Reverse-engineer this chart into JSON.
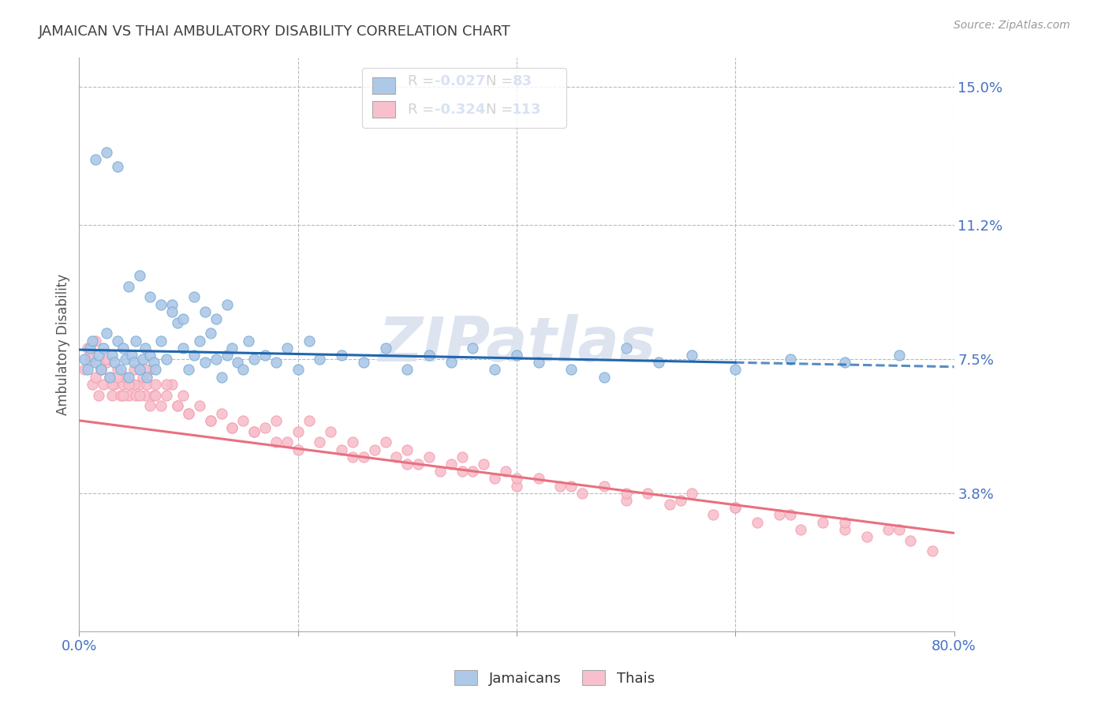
{
  "title": "JAMAICAN VS THAI AMBULATORY DISABILITY CORRELATION CHART",
  "source": "Source: ZipAtlas.com",
  "ylabel": "Ambulatory Disability",
  "x_min": 0.0,
  "x_max": 0.8,
  "y_min": 0.0,
  "y_max": 0.158,
  "yticks": [
    0.038,
    0.075,
    0.112,
    0.15
  ],
  "ytick_labels": [
    "3.8%",
    "7.5%",
    "11.2%",
    "15.0%"
  ],
  "xticks": [
    0.0,
    0.2,
    0.4,
    0.6,
    0.8
  ],
  "xtick_labels": [
    "0.0%",
    "",
    "",
    "",
    "80.0%"
  ],
  "blue_color": "#7bafd4",
  "pink_color": "#f4a0b0",
  "blue_line_color": "#2166ac",
  "pink_line_color": "#e87080",
  "blue_fill_color": "#aec8e8",
  "pink_fill_color": "#f8c0cc",
  "axis_label_color": "#4472C4",
  "title_color": "#404040",
  "watermark": "ZIPatlas",
  "background_color": "#ffffff",
  "grid_color": "#bbbbbb",
  "watermark_color": "#dde4f0",
  "jam_x": [
    0.005,
    0.008,
    0.01,
    0.012,
    0.015,
    0.018,
    0.02,
    0.022,
    0.025,
    0.028,
    0.03,
    0.032,
    0.035,
    0.038,
    0.04,
    0.042,
    0.045,
    0.048,
    0.05,
    0.052,
    0.055,
    0.058,
    0.06,
    0.062,
    0.065,
    0.068,
    0.07,
    0.075,
    0.08,
    0.085,
    0.09,
    0.095,
    0.1,
    0.105,
    0.11,
    0.115,
    0.12,
    0.125,
    0.13,
    0.135,
    0.14,
    0.145,
    0.15,
    0.155,
    0.16,
    0.17,
    0.18,
    0.19,
    0.2,
    0.21,
    0.22,
    0.24,
    0.26,
    0.28,
    0.3,
    0.32,
    0.34,
    0.36,
    0.38,
    0.4,
    0.42,
    0.45,
    0.48,
    0.5,
    0.53,
    0.56,
    0.6,
    0.65,
    0.7,
    0.75,
    0.015,
    0.025,
    0.035,
    0.045,
    0.055,
    0.065,
    0.075,
    0.085,
    0.095,
    0.105,
    0.115,
    0.125,
    0.135
  ],
  "jam_y": [
    0.075,
    0.072,
    0.078,
    0.08,
    0.074,
    0.076,
    0.072,
    0.078,
    0.082,
    0.07,
    0.076,
    0.074,
    0.08,
    0.072,
    0.078,
    0.075,
    0.07,
    0.076,
    0.074,
    0.08,
    0.072,
    0.075,
    0.078,
    0.07,
    0.076,
    0.074,
    0.072,
    0.08,
    0.075,
    0.09,
    0.085,
    0.078,
    0.072,
    0.076,
    0.08,
    0.074,
    0.082,
    0.075,
    0.07,
    0.076,
    0.078,
    0.074,
    0.072,
    0.08,
    0.075,
    0.076,
    0.074,
    0.078,
    0.072,
    0.08,
    0.075,
    0.076,
    0.074,
    0.078,
    0.072,
    0.076,
    0.074,
    0.078,
    0.072,
    0.076,
    0.074,
    0.072,
    0.07,
    0.078,
    0.074,
    0.076,
    0.072,
    0.075,
    0.074,
    0.076,
    0.13,
    0.132,
    0.128,
    0.095,
    0.098,
    0.092,
    0.09,
    0.088,
    0.086,
    0.092,
    0.088,
    0.086,
    0.09
  ],
  "thai_x": [
    0.005,
    0.008,
    0.01,
    0.012,
    0.015,
    0.018,
    0.02,
    0.022,
    0.025,
    0.028,
    0.03,
    0.032,
    0.035,
    0.038,
    0.04,
    0.042,
    0.045,
    0.048,
    0.05,
    0.052,
    0.055,
    0.058,
    0.06,
    0.062,
    0.065,
    0.068,
    0.07,
    0.075,
    0.08,
    0.085,
    0.09,
    0.095,
    0.1,
    0.11,
    0.12,
    0.13,
    0.14,
    0.15,
    0.16,
    0.17,
    0.18,
    0.19,
    0.2,
    0.21,
    0.22,
    0.23,
    0.24,
    0.25,
    0.26,
    0.27,
    0.28,
    0.29,
    0.3,
    0.31,
    0.32,
    0.33,
    0.34,
    0.35,
    0.36,
    0.37,
    0.38,
    0.39,
    0.4,
    0.42,
    0.44,
    0.46,
    0.48,
    0.5,
    0.52,
    0.54,
    0.56,
    0.58,
    0.6,
    0.62,
    0.64,
    0.66,
    0.68,
    0.7,
    0.72,
    0.74,
    0.76,
    0.78,
    0.01,
    0.02,
    0.03,
    0.04,
    0.05,
    0.06,
    0.07,
    0.08,
    0.09,
    0.1,
    0.12,
    0.14,
    0.16,
    0.18,
    0.2,
    0.25,
    0.3,
    0.35,
    0.4,
    0.45,
    0.5,
    0.55,
    0.6,
    0.65,
    0.7,
    0.75,
    0.015,
    0.025,
    0.035,
    0.045,
    0.055,
    0.065
  ],
  "thai_y": [
    0.072,
    0.078,
    0.075,
    0.068,
    0.07,
    0.065,
    0.072,
    0.068,
    0.074,
    0.07,
    0.065,
    0.068,
    0.072,
    0.065,
    0.068,
    0.07,
    0.065,
    0.068,
    0.072,
    0.065,
    0.068,
    0.07,
    0.065,
    0.068,
    0.072,
    0.065,
    0.068,
    0.062,
    0.065,
    0.068,
    0.062,
    0.065,
    0.06,
    0.062,
    0.058,
    0.06,
    0.056,
    0.058,
    0.055,
    0.056,
    0.058,
    0.052,
    0.055,
    0.058,
    0.052,
    0.055,
    0.05,
    0.052,
    0.048,
    0.05,
    0.052,
    0.048,
    0.05,
    0.046,
    0.048,
    0.044,
    0.046,
    0.048,
    0.044,
    0.046,
    0.042,
    0.044,
    0.04,
    0.042,
    0.04,
    0.038,
    0.04,
    0.036,
    0.038,
    0.035,
    0.038,
    0.032,
    0.034,
    0.03,
    0.032,
    0.028,
    0.03,
    0.028,
    0.026,
    0.028,
    0.025,
    0.022,
    0.076,
    0.072,
    0.068,
    0.065,
    0.068,
    0.072,
    0.065,
    0.068,
    0.062,
    0.06,
    0.058,
    0.056,
    0.055,
    0.052,
    0.05,
    0.048,
    0.046,
    0.044,
    0.042,
    0.04,
    0.038,
    0.036,
    0.034,
    0.032,
    0.03,
    0.028,
    0.08,
    0.075,
    0.07,
    0.068,
    0.065,
    0.062
  ]
}
